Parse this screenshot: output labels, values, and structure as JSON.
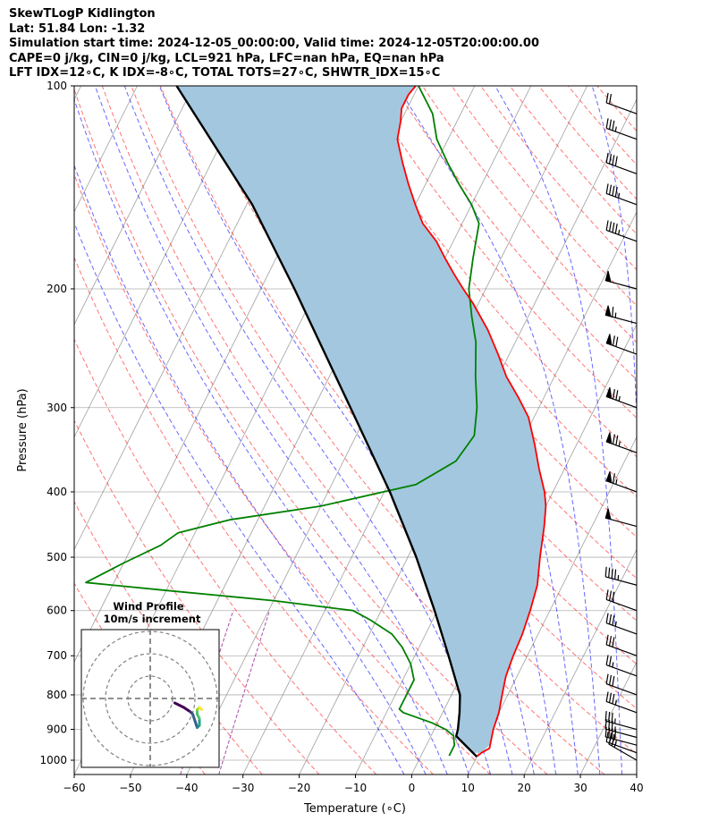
{
  "header": {
    "title": "SkewTLogP Kidlington",
    "location": "Lat: 51.84   Lon: -1.32",
    "times": "Simulation start time: 2024-12-05_00:00:00, Valid time: 2024-12-05T20:00:00.00",
    "params": "CAPE=0 j/kg, CIN=0 j/kg, LCL=921 hPa, LFC=nan hPa, EQ=nan hPa",
    "indices": "LFT IDX=12∘C, K IDX=-8∘C, TOTAL TOTS=27∘C, SHWTR_IDX=15∘C"
  },
  "chart_data": {
    "type": "skewt",
    "xlabel": "Temperature (∘C)",
    "ylabel": "Pressure (hPa)",
    "xlim": [
      -60,
      40
    ],
    "ylim": [
      1050,
      100
    ],
    "x_scale": "linear (skewed isotherms)",
    "y_scale": "log",
    "x_ticks": [
      -60,
      -50,
      -40,
      -30,
      -20,
      -10,
      0,
      10,
      20,
      30,
      40
    ],
    "x_tick_labels": [
      "−60",
      "−50",
      "−40",
      "−30",
      "−20",
      "−10",
      "0",
      "10",
      "20",
      "30",
      "40"
    ],
    "y_ticks": [
      1000,
      900,
      800,
      700,
      600,
      500,
      400,
      300,
      200,
      100
    ],
    "y_tick_labels": [
      "1000",
      "900",
      "800",
      "700",
      "600",
      "500",
      "400",
      "300",
      "200",
      "100"
    ],
    "grid": true,
    "colors": {
      "temperature": "#ff0000",
      "dewpoint": "#008000",
      "parcel": "#000000",
      "cin_fill": "#a3c7df",
      "dry_adiabats": "#ff0000",
      "moist_adiabats": "#0000ff",
      "mixing_ratio": "#800080",
      "isotherms": "#808080"
    },
    "temperature_profile": {
      "pressure": [
        987,
        975,
        960,
        930,
        900,
        850,
        800,
        750,
        700,
        650,
        600,
        550,
        500,
        450,
        420,
        400,
        370,
        340,
        310,
        290,
        270,
        250,
        230,
        210,
        200,
        190,
        180,
        170,
        160,
        150,
        140,
        130,
        120,
        113,
        108,
        103,
        100
      ],
      "temperature": [
        10,
        10.5,
        11.5,
        11,
        10.5,
        10,
        9,
        8,
        7.5,
        7.2,
        6.5,
        5.5,
        3.5,
        1.5,
        0,
        -1.5,
        -4.5,
        -7.5,
        -11,
        -14.5,
        -18.5,
        -22,
        -26,
        -31,
        -34,
        -37,
        -40,
        -43,
        -47,
        -50,
        -53,
        -56,
        -59,
        -60,
        -61,
        -61,
        -60.5
      ]
    },
    "dewpoint_profile": {
      "pressure": [
        985,
        970,
        950,
        920,
        900,
        880,
        850,
        840,
        800,
        760,
        720,
        680,
        650,
        620,
        600,
        580,
        560,
        545,
        510,
        480,
        460,
        440,
        420,
        390,
        360,
        330,
        300,
        270,
        240,
        220,
        200,
        180,
        160,
        150,
        140,
        130,
        120,
        110,
        100
      ],
      "dewpoint": [
        5,
        5,
        5,
        4,
        2,
        -1,
        -7,
        -8,
        -8,
        -8,
        -10,
        -13,
        -16,
        -21,
        -25,
        -40,
        -60,
        -75,
        -70,
        -65,
        -63,
        -55,
        -40,
        -25,
        -20,
        -19,
        -21,
        -24,
        -27,
        -30,
        -33,
        -35,
        -37,
        -40,
        -44,
        -48,
        -52,
        -55,
        -60
      ]
    },
    "parcel_profile": {
      "pressure": [
        988,
        921,
        900,
        850,
        800,
        700,
        600,
        500,
        400,
        300,
        200,
        150,
        100
      ],
      "temperature": [
        10,
        4.5,
        4.2,
        3,
        1.5,
        -4,
        -10.5,
        -18.5,
        -29,
        -43.5,
        -64,
        -79,
        -103
      ]
    },
    "wind_barbs": {
      "pressure": [
        1000,
        975,
        950,
        925,
        900,
        850,
        800,
        750,
        700,
        650,
        600,
        550,
        450,
        400,
        350,
        300,
        250,
        225,
        200,
        170,
        150,
        135,
        120,
        110
      ],
      "speed_kt": [
        25,
        35,
        40,
        35,
        35,
        35,
        30,
        25,
        30,
        35,
        30,
        45,
        50,
        65,
        75,
        75,
        70,
        65,
        50,
        45,
        45,
        40,
        35,
        20
      ],
      "direction_deg": [
        300,
        290,
        285,
        285,
        285,
        290,
        290,
        290,
        290,
        290,
        290,
        285,
        285,
        290,
        290,
        290,
        290,
        285,
        285,
        290,
        290,
        290,
        290,
        290
      ]
    },
    "inset": {
      "title": "Wind Profile",
      "subtitle": "10m/s increment",
      "rings_ms": [
        10,
        20,
        30
      ],
      "hodograph": [
        [
          11,
          -2
        ],
        [
          15,
          -4
        ],
        [
          18,
          -6
        ],
        [
          19,
          -7
        ],
        [
          20,
          -10
        ],
        [
          21,
          -13
        ],
        [
          22,
          -12
        ],
        [
          22,
          -9
        ],
        [
          21,
          -7
        ],
        [
          21,
          -5
        ],
        [
          22,
          -4
        ],
        [
          23,
          -5
        ]
      ]
    }
  }
}
